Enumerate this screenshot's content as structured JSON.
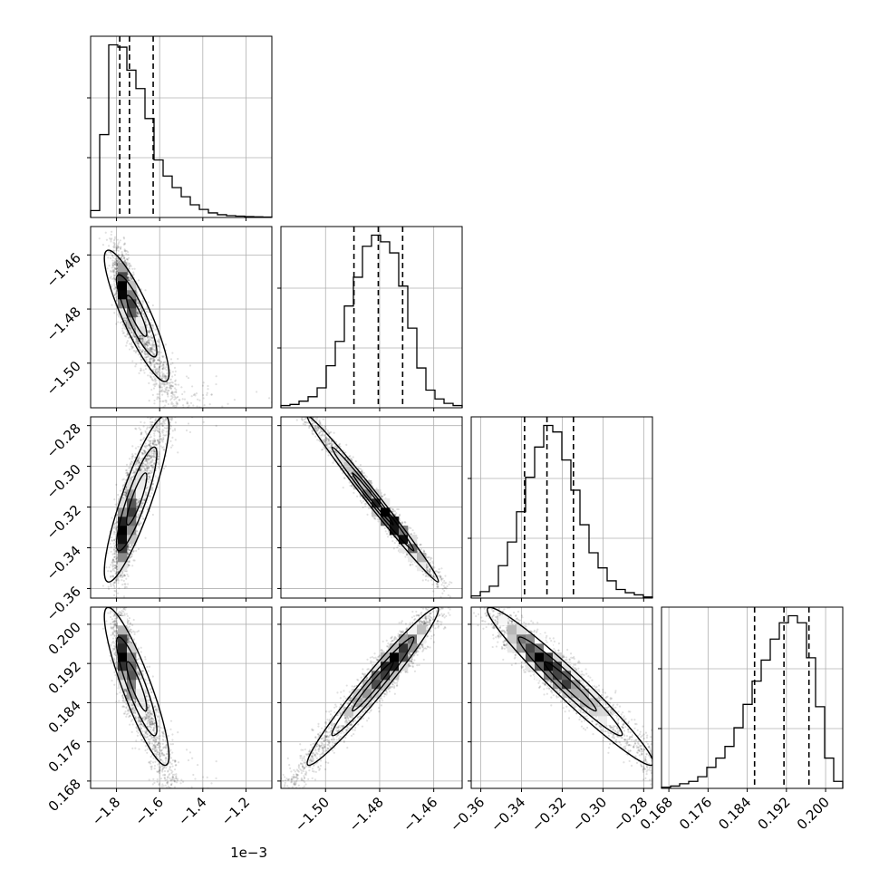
{
  "chart_data": {
    "type": "corner",
    "parameters": [
      {
        "range": [
          -1.92,
          -1.08
        ],
        "ticks": [
          -1.8,
          -1.6,
          -1.4,
          -1.2
        ],
        "tick_labels": [
          "−1.8",
          "−1.6",
          "−1.4",
          "−1.2"
        ],
        "offset_label": "1e−3",
        "quantiles": [
          -1.785,
          -1.74,
          -1.63
        ],
        "hist": [
          0.3,
          3.6,
          7.5,
          7.4,
          6.4,
          5.6,
          4.3,
          2.5,
          1.8,
          1.3,
          0.9,
          0.55,
          0.35,
          0.2,
          0.12,
          0.08,
          0.06,
          0.04,
          0.03,
          0.02
        ]
      },
      {
        "range": [
          -1.5165,
          -1.4495
        ],
        "ticks": [
          -1.5,
          -1.48,
          -1.46
        ],
        "tick_labels": [
          "−1.50",
          "−1.48",
          "−1.46"
        ],
        "quantiles": [
          -1.4895,
          -1.4805,
          -1.4715
        ],
        "hist": [
          0.1,
          0.15,
          0.3,
          0.5,
          0.9,
          1.9,
          3.0,
          4.6,
          5.9,
          7.3,
          7.8,
          7.5,
          7.0,
          5.5,
          3.6,
          1.8,
          0.8,
          0.4,
          0.2,
          0.1
        ]
      },
      {
        "range": [
          -0.3647,
          -0.2757
        ],
        "ticks": [
          -0.36,
          -0.34,
          -0.32,
          -0.3,
          -0.28
        ],
        "tick_labels": [
          "−0.36",
          "−0.34",
          "−0.32",
          "−0.30",
          "−0.28"
        ],
        "quantiles": [
          -0.3385,
          -0.3275,
          -0.3145
        ],
        "hist": [
          0.1,
          0.3,
          0.55,
          1.5,
          2.6,
          4.0,
          5.6,
          7.0,
          8.0,
          7.7,
          6.4,
          5.0,
          3.4,
          2.1,
          1.4,
          0.8,
          0.4,
          0.25,
          0.15,
          0.05
        ]
      },
      {
        "range": [
          0.1665,
          0.2035
        ],
        "ticks": [
          0.168,
          0.176,
          0.184,
          0.192,
          0.2
        ],
        "tick_labels": [
          "0.168",
          "0.176",
          "0.184",
          "0.192",
          "0.200"
        ],
        "quantiles": [
          0.1855,
          0.1915,
          0.1966
        ],
        "hist": [
          0.05,
          0.1,
          0.2,
          0.3,
          0.5,
          0.9,
          1.3,
          1.8,
          2.6,
          3.6,
          4.6,
          5.5,
          6.4,
          7.1,
          7.4,
          7.1,
          5.6,
          3.5,
          1.3,
          0.3
        ]
      }
    ]
  }
}
